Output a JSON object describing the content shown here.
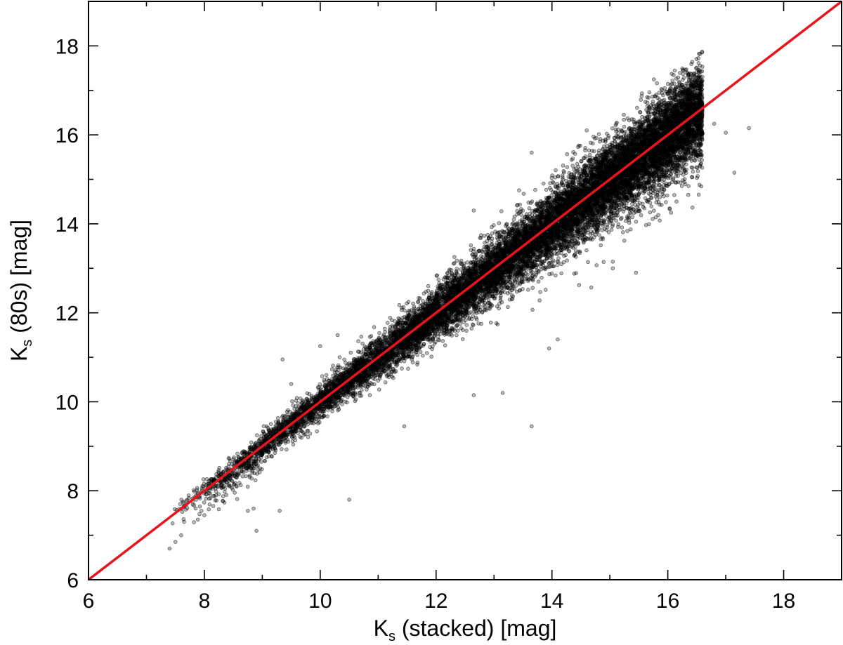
{
  "chart_data": {
    "type": "scatter",
    "xlabel": {
      "main": "K",
      "sub": "s",
      "rest": " (stacked) [mag]"
    },
    "ylabel": {
      "main": "K",
      "sub": "s",
      "rest": " (80s) [mag]"
    },
    "xlim": [
      6,
      19
    ],
    "ylim": [
      6,
      19
    ],
    "xticks": [
      6,
      8,
      10,
      12,
      14,
      16,
      18
    ],
    "yticks": [
      6,
      8,
      10,
      12,
      14,
      16,
      18
    ],
    "grid": false,
    "reference_line": {
      "x": [
        6,
        19
      ],
      "y": [
        6,
        19
      ],
      "color": "#e8141b"
    },
    "point_color": "#000000",
    "dense_band": {
      "x_range": [
        7.4,
        16.6
      ],
      "approx_points": 15000,
      "relation": "y ≈ x, with a faint-end tail scattered below the line"
    },
    "outliers": [
      {
        "x": 7.4,
        "y": 6.7
      },
      {
        "x": 7.5,
        "y": 6.85
      },
      {
        "x": 7.6,
        "y": 7.0
      },
      {
        "x": 7.65,
        "y": 7.3
      },
      {
        "x": 7.95,
        "y": 7.55
      },
      {
        "x": 8.0,
        "y": 7.45
      },
      {
        "x": 8.45,
        "y": 8.1
      },
      {
        "x": 8.75,
        "y": 7.55
      },
      {
        "x": 8.85,
        "y": 7.6
      },
      {
        "x": 8.9,
        "y": 7.1
      },
      {
        "x": 9.3,
        "y": 7.55
      },
      {
        "x": 10.5,
        "y": 7.8
      },
      {
        "x": 9.35,
        "y": 10.95
      },
      {
        "x": 9.5,
        "y": 10.4
      },
      {
        "x": 10.0,
        "y": 11.25
      },
      {
        "x": 10.3,
        "y": 11.5
      },
      {
        "x": 11.45,
        "y": 9.45
      },
      {
        "x": 12.65,
        "y": 10.15
      },
      {
        "x": 13.15,
        "y": 10.2
      },
      {
        "x": 13.65,
        "y": 9.45
      },
      {
        "x": 12.65,
        "y": 14.3
      },
      {
        "x": 13.65,
        "y": 15.6
      },
      {
        "x": 13.95,
        "y": 11.2
      },
      {
        "x": 14.1,
        "y": 11.4
      },
      {
        "x": 14.6,
        "y": 16.1
      },
      {
        "x": 15.05,
        "y": 13.0
      },
      {
        "x": 15.05,
        "y": 13.15
      },
      {
        "x": 15.45,
        "y": 12.9
      },
      {
        "x": 16.15,
        "y": 14.5
      },
      {
        "x": 16.8,
        "y": 16.25
      },
      {
        "x": 17.0,
        "y": 16.05
      },
      {
        "x": 17.15,
        "y": 15.15
      },
      {
        "x": 17.4,
        "y": 16.15
      }
    ]
  }
}
